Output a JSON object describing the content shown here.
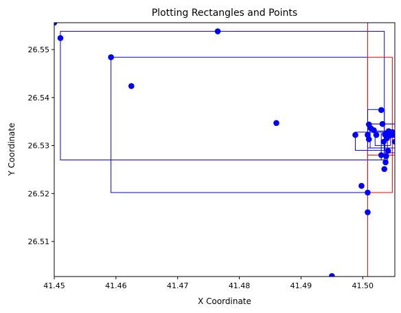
{
  "chart_data": {
    "type": "scatter",
    "title": "Plotting Rectangles and Points",
    "xlabel": "X Coordinate",
    "ylabel": "Y Coordinate",
    "xlim": [
      41.45,
      41.5052
    ],
    "ylim": [
      26.5027,
      26.5556
    ],
    "grid": false,
    "xticks": [
      {
        "value": 41.45,
        "label": "41.45"
      },
      {
        "value": 41.46,
        "label": "41.46"
      },
      {
        "value": 41.47,
        "label": "41.47"
      },
      {
        "value": 41.48,
        "label": "41.48"
      },
      {
        "value": 41.49,
        "label": "41.49"
      },
      {
        "value": 41.5,
        "label": "41.50"
      }
    ],
    "yticks": [
      {
        "value": 26.51,
        "label": "26.51"
      },
      {
        "value": 26.52,
        "label": "26.52"
      },
      {
        "value": 26.53,
        "label": "26.53"
      },
      {
        "value": 26.54,
        "label": "26.54"
      },
      {
        "value": 26.55,
        "label": "26.55"
      }
    ],
    "point_color": "#0000ff",
    "rectangles": [
      {
        "x0": 41.45,
        "x1": 41.5052,
        "y0": 26.5027,
        "y1": 26.5556,
        "color": "#0000ff"
      },
      {
        "x0": 41.451,
        "x1": 41.5035,
        "y0": 26.527,
        "y1": 26.5538,
        "color": "#0000ff"
      },
      {
        "x0": 41.4592,
        "x1": 41.5008,
        "y0": 26.5202,
        "y1": 26.5484,
        "color": "#0000ff"
      },
      {
        "x0": 41.5008,
        "x1": 41.5052,
        "y0": 26.5027,
        "y1": 26.5556,
        "color": "#ff0000"
      },
      {
        "x0": 41.5008,
        "x1": 41.5048,
        "y0": 26.5202,
        "y1": 26.5484,
        "color": "#ff0000"
      },
      {
        "x0": 41.5008,
        "x1": 41.5052,
        "y0": 26.528,
        "y1": 26.5345,
        "color": "#ff0000"
      },
      {
        "x0": 41.5008,
        "x1": 41.5035,
        "y0": 26.5295,
        "y1": 26.5375,
        "color": "#0000ff"
      },
      {
        "x0": 41.4988,
        "x1": 41.5036,
        "y0": 26.529,
        "y1": 26.5328,
        "color": "#0000ff"
      },
      {
        "x0": 41.5012,
        "x1": 41.5052,
        "y0": 26.5295,
        "y1": 26.5345,
        "color": "#0000ff"
      },
      {
        "x0": 41.502,
        "x1": 41.5045,
        "y0": 26.53,
        "y1": 26.533,
        "color": "#0000ff"
      },
      {
        "x0": 41.503,
        "x1": 41.504,
        "y0": 26.527,
        "y1": 26.5325,
        "color": "#0000ff"
      },
      {
        "x0": 41.5035,
        "x1": 41.5052,
        "y0": 26.5285,
        "y1": 26.533,
        "color": "#0000ff"
      }
    ],
    "points": [
      {
        "x": 41.45,
        "y": 26.5556
      },
      {
        "x": 41.451,
        "y": 26.5524
      },
      {
        "x": 41.4765,
        "y": 26.5538
      },
      {
        "x": 41.4592,
        "y": 26.5484
      },
      {
        "x": 41.4625,
        "y": 26.5424
      },
      {
        "x": 41.486,
        "y": 26.5347
      },
      {
        "x": 41.495,
        "y": 26.5028
      },
      {
        "x": 41.4988,
        "y": 26.5322
      },
      {
        "x": 41.4998,
        "y": 26.5216
      },
      {
        "x": 41.5008,
        "y": 26.5202
      },
      {
        "x": 41.5008,
        "y": 26.5161
      },
      {
        "x": 41.5008,
        "y": 26.5322
      },
      {
        "x": 41.501,
        "y": 26.5313
      },
      {
        "x": 41.501,
        "y": 26.5344
      },
      {
        "x": 41.5013,
        "y": 26.5336
      },
      {
        "x": 41.5018,
        "y": 26.5332
      },
      {
        "x": 41.5022,
        "y": 26.5322
      },
      {
        "x": 41.503,
        "y": 26.5374
      },
      {
        "x": 41.503,
        "y": 26.528
      },
      {
        "x": 41.5032,
        "y": 26.5345
      },
      {
        "x": 41.5034,
        "y": 26.5308
      },
      {
        "x": 41.5035,
        "y": 26.5251
      },
      {
        "x": 41.5036,
        "y": 26.5323
      },
      {
        "x": 41.5037,
        "y": 26.5265
      },
      {
        "x": 41.5038,
        "y": 26.5278
      },
      {
        "x": 41.5039,
        "y": 26.5315
      },
      {
        "x": 41.504,
        "y": 26.5327
      },
      {
        "x": 41.5041,
        "y": 26.5289
      },
      {
        "x": 41.5042,
        "y": 26.533
      },
      {
        "x": 41.5044,
        "y": 26.5321
      },
      {
        "x": 41.5046,
        "y": 26.5325
      },
      {
        "x": 41.5048,
        "y": 26.5328
      },
      {
        "x": 41.505,
        "y": 26.5322
      },
      {
        "x": 41.5052,
        "y": 26.5308
      }
    ]
  }
}
